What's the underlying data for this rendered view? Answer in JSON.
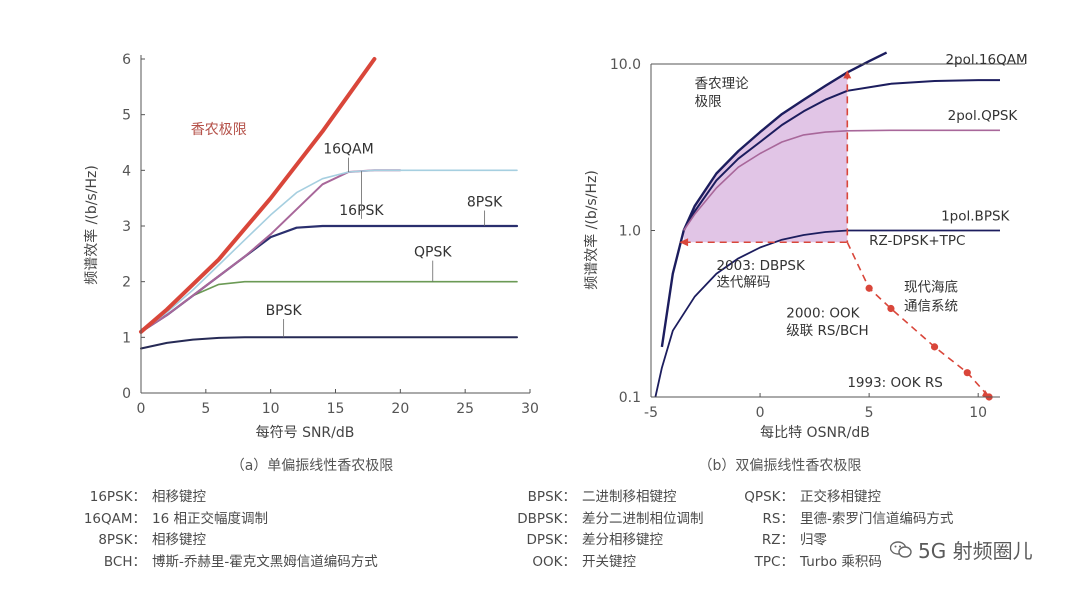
{
  "chart_data": [
    {
      "id": "a",
      "type": "line",
      "caption": "（a）单偏振线性香农极限",
      "xlabel": "每符号 SNR/dB",
      "ylabel": "频谱效率 /(b/s/Hz)",
      "xlim": [
        0,
        30
      ],
      "ylim": [
        0,
        6
      ],
      "xticks": [
        0,
        5,
        10,
        15,
        20,
        25,
        30
      ],
      "yticks": [
        0,
        1,
        2,
        3,
        4,
        5,
        6
      ],
      "grid": false,
      "series": [
        {
          "name": "香农极限",
          "color": "#d9463a",
          "width": 4,
          "x": [
            0,
            2,
            4,
            6,
            8,
            10,
            12,
            14,
            16,
            18
          ],
          "y": [
            1.1,
            1.5,
            1.95,
            2.4,
            2.95,
            3.5,
            4.1,
            4.7,
            5.35,
            6.0
          ],
          "label_x": 6,
          "label_y": 4.65
        },
        {
          "name": "16QAM",
          "color": "#a6cfe0",
          "width": 1.6,
          "x": [
            0,
            2,
            4,
            6,
            8,
            10,
            12,
            14,
            16,
            18,
            20,
            25,
            29
          ],
          "y": [
            1.1,
            1.45,
            1.85,
            2.3,
            2.75,
            3.2,
            3.6,
            3.85,
            3.97,
            4.0,
            4.0,
            4.0,
            4.0
          ],
          "label_x": 16,
          "label_y": 4.3
        },
        {
          "name": "16PSK",
          "color": "#a8679a",
          "width": 2,
          "x": [
            0,
            2,
            4,
            6,
            8,
            10,
            12,
            14,
            16,
            18,
            20
          ],
          "y": [
            1.1,
            1.4,
            1.75,
            2.1,
            2.45,
            2.85,
            3.3,
            3.75,
            3.97,
            4.0,
            4.0
          ],
          "label_x": 17,
          "label_y": 3.2
        },
        {
          "name": "8PSK",
          "color": "#2a2f6e",
          "width": 2.2,
          "x": [
            0,
            2,
            4,
            6,
            8,
            10,
            12,
            14,
            16,
            20,
            25,
            29
          ],
          "y": [
            1.1,
            1.4,
            1.75,
            2.1,
            2.45,
            2.8,
            2.97,
            3.0,
            3.0,
            3.0,
            3.0,
            3.0
          ],
          "label_x": 26.5,
          "label_y": 3.35
        },
        {
          "name": "QPSK",
          "color": "#6b9a55",
          "width": 1.6,
          "x": [
            0,
            2,
            4,
            6,
            8,
            10,
            12,
            14,
            20,
            25,
            29
          ],
          "y": [
            1.1,
            1.4,
            1.75,
            1.95,
            2.0,
            2.0,
            2.0,
            2.0,
            2.0,
            2.0,
            2.0
          ],
          "label_x": 22.5,
          "label_y": 2.45
        },
        {
          "name": "BPSK",
          "color": "#262a55",
          "width": 2,
          "x": [
            0,
            2,
            4,
            6,
            8,
            10,
            15,
            20,
            25,
            29
          ],
          "y": [
            0.8,
            0.9,
            0.96,
            0.99,
            1.0,
            1.0,
            1.0,
            1.0,
            1.0,
            1.0
          ],
          "label_x": 11,
          "label_y": 1.4
        }
      ]
    },
    {
      "id": "b",
      "type": "line",
      "caption": "（b）双偏振线性香农极限",
      "xlabel": "每比特 OSNR/dB",
      "ylabel": "频谱效率 /(b/s/Hz)",
      "xlim": [
        -5,
        11
      ],
      "ylim": [
        0.1,
        10
      ],
      "yscale": "log",
      "xticks": [
        -5,
        0,
        5,
        10
      ],
      "yticks": [
        0.1,
        1.0,
        10.0
      ],
      "ytick_labels": [
        "0.1",
        "1.0",
        "10.0"
      ],
      "grid": false,
      "series": [
        {
          "name": "香农理论极限",
          "color": "#1c1d5e",
          "width": 2.4,
          "x": [
            -4.5,
            -4.0,
            -3.5,
            -3.0,
            -2.0,
            -1.0,
            0.0,
            1.0,
            2.0,
            3.0,
            4.0,
            5.0,
            5.8
          ],
          "y": [
            0.2,
            0.55,
            1.0,
            1.4,
            2.2,
            3.0,
            3.9,
            5.0,
            6.1,
            7.4,
            8.9,
            10.4,
            11.7
          ]
        },
        {
          "name": "2pol.16QAM",
          "color": "#1c1d5e",
          "width": 2,
          "x": [
            -3.5,
            -3.0,
            -2.0,
            -1.0,
            0.0,
            1.0,
            2.0,
            3.0,
            4.0,
            6.0,
            8.0,
            10.0,
            11.0
          ],
          "y": [
            1.0,
            1.3,
            2.0,
            2.7,
            3.4,
            4.3,
            5.2,
            6.1,
            6.9,
            7.6,
            7.9,
            8.0,
            8.0
          ]
        },
        {
          "name": "2pol.QPSK",
          "color": "#a8679a",
          "width": 1.6,
          "x": [
            -3.5,
            -3.0,
            -2.0,
            -1.0,
            0.0,
            1.0,
            2.0,
            3.0,
            4.0,
            6.0,
            8.0,
            10.0,
            11.0
          ],
          "y": [
            1.0,
            1.25,
            1.8,
            2.4,
            2.9,
            3.4,
            3.75,
            3.9,
            3.97,
            4.0,
            4.0,
            4.0,
            4.0
          ]
        },
        {
          "name": "1pol.BPSK",
          "color": "#1c1d5e",
          "width": 1.8,
          "x": [
            -4.8,
            -4.5,
            -4.0,
            -3.0,
            -2.0,
            -1.0,
            0.0,
            1.0,
            2.0,
            3.0,
            4.0,
            6.0,
            8.0,
            11.0
          ],
          "y": [
            0.1,
            0.15,
            0.25,
            0.4,
            0.55,
            0.68,
            0.79,
            0.88,
            0.94,
            0.98,
            1.0,
            1.0,
            1.0,
            1.0
          ]
        },
        {
          "name": "RZ-DPSK+TPC",
          "color": "#d9463a",
          "width": 1.6,
          "dashed": true,
          "markers": true,
          "x": [
            4.0,
            5.0,
            6.0,
            8.0,
            9.5,
            10.5
          ],
          "y": [
            0.85,
            0.45,
            0.34,
            0.2,
            0.14,
            0.1
          ]
        }
      ],
      "annotations": [
        {
          "text": "2pol.16QAM",
          "x": 8.5,
          "y": 10.0
        },
        {
          "text": "2pol.QPSK",
          "x": 8.6,
          "y": 4.6
        },
        {
          "text": "1pol.BPSK",
          "x": 8.3,
          "y": 1.15
        },
        {
          "text": "RZ-DPSK+TPC",
          "x": 5.0,
          "y": 0.82
        },
        {
          "text": "香农理论",
          "x": -3.0,
          "y": 7.2
        },
        {
          "text": "极限",
          "x": -3.0,
          "y": 5.6
        },
        {
          "text": "2003: DBPSK",
          "x": -2.0,
          "y": 0.58
        },
        {
          "text": "迭代解码",
          "x": -2.0,
          "y": 0.46
        },
        {
          "text": "现代海底",
          "x": 6.6,
          "y": 0.43
        },
        {
          "text": "通信系统",
          "x": 6.6,
          "y": 0.33
        },
        {
          "text": "2000: OOK",
          "x": 1.2,
          "y": 0.3
        },
        {
          "text": "级联 RS/BCH",
          "x": 1.2,
          "y": 0.235
        },
        {
          "text": "1993: OOK RS",
          "x": 4.0,
          "y": 0.115
        }
      ]
    }
  ],
  "legend": {
    "left": [
      {
        "key": "16PSK",
        "value": "相移键控"
      },
      {
        "key": "16QAM",
        "value": "16 相正交幅度调制"
      },
      {
        "key": "8PSK",
        "value": "相移键控"
      },
      {
        "key": "BCH",
        "value": "博斯-乔赫里-霍克文黑姆信道编码方式"
      }
    ],
    "middle": [
      {
        "key": "BPSK",
        "value": "二进制移相键控"
      },
      {
        "key": "DBPSK",
        "value": "差分二进制相位调制"
      },
      {
        "key": "DPSK",
        "value": "差分相移键控"
      },
      {
        "key": "OOK",
        "value": "开关键控"
      }
    ],
    "right": [
      {
        "key": "QPSK",
        "value": "正交移相键控"
      },
      {
        "key": "RS",
        "value": "里德-索罗门信道编码方式"
      },
      {
        "key": "RZ",
        "value": "归零"
      },
      {
        "key": "TPC",
        "value": "Turbo 乘积码"
      }
    ]
  },
  "watermark": "5G 射频圈儿"
}
